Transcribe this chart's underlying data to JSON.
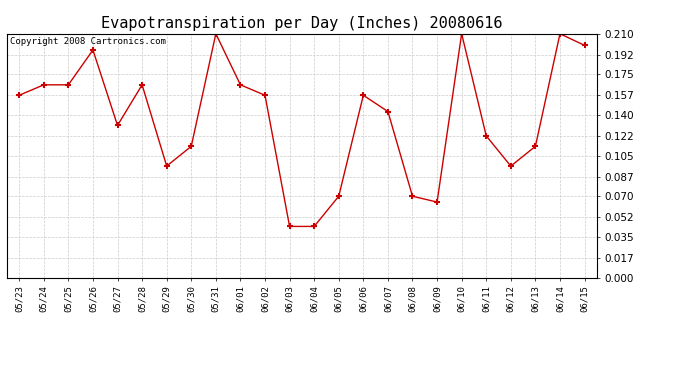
{
  "title": "Evapotranspiration per Day (Inches) 20080616",
  "copyright_text": "Copyright 2008 Cartronics.com",
  "x_labels": [
    "05/23",
    "05/24",
    "05/25",
    "05/26",
    "05/27",
    "05/28",
    "05/29",
    "05/30",
    "05/31",
    "06/01",
    "06/02",
    "06/03",
    "06/04",
    "06/05",
    "06/06",
    "06/07",
    "06/08",
    "06/09",
    "06/10",
    "06/11",
    "06/12",
    "06/13",
    "06/14",
    "06/15"
  ],
  "y_values": [
    0.157,
    0.166,
    0.166,
    0.196,
    0.131,
    0.166,
    0.096,
    0.113,
    0.21,
    0.166,
    0.157,
    0.044,
    0.044,
    0.07,
    0.157,
    0.143,
    0.07,
    0.065,
    0.21,
    0.122,
    0.096,
    0.113,
    0.21,
    0.2
  ],
  "line_color": "#cc0000",
  "marker": "+",
  "marker_size": 5,
  "bg_color": "#ffffff",
  "plot_bg_color": "#ffffff",
  "grid_color": "#cccccc",
  "y_ticks": [
    0.0,
    0.017,
    0.035,
    0.052,
    0.07,
    0.087,
    0.105,
    0.122,
    0.14,
    0.157,
    0.175,
    0.192,
    0.21
  ],
  "ylim": [
    0.0,
    0.21
  ],
  "title_fontsize": 11,
  "copyright_fontsize": 6.5,
  "tick_fontsize": 7.5,
  "xtick_fontsize": 6.5
}
